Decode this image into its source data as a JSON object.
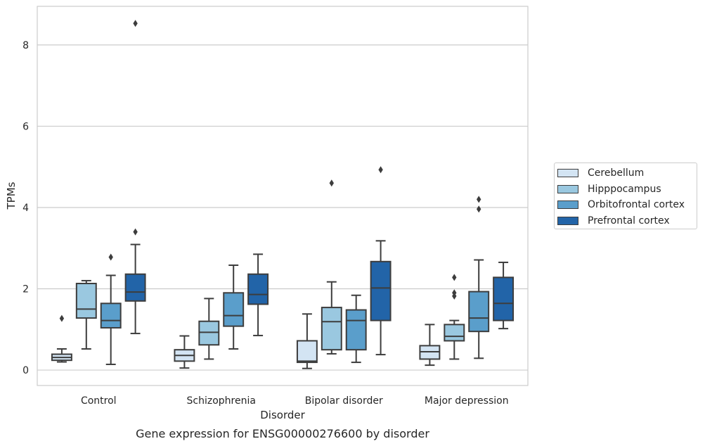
{
  "chart_data": {
    "type": "box",
    "title": "",
    "caption": "Gene expression for ENSG00000276600 by disorder",
    "xlabel": "Disorder",
    "ylabel": "TPMs",
    "ylim": [
      -0.38,
      8.95
    ],
    "yticks": [
      0,
      2,
      4,
      6,
      8
    ],
    "grid": "horizontal",
    "legend_position": "right",
    "categories": [
      "Control",
      "Schizophrenia",
      "Bipolar disorder",
      "Major depression"
    ],
    "series": [
      {
        "name": "Cerebellum",
        "color": "#d3e4f3",
        "boxes": [
          {
            "whisker_low": 0.2,
            "q1": 0.24,
            "median": 0.31,
            "q3": 0.39,
            "whisker_high": 0.52,
            "outliers": [
              1.27
            ]
          },
          {
            "whisker_low": 0.05,
            "q1": 0.22,
            "median": 0.36,
            "q3": 0.5,
            "whisker_high": 0.84,
            "outliers": []
          },
          {
            "whisker_low": 0.04,
            "q1": 0.19,
            "median": 0.22,
            "q3": 0.72,
            "whisker_high": 1.38,
            "outliers": []
          },
          {
            "whisker_low": 0.12,
            "q1": 0.27,
            "median": 0.45,
            "q3": 0.6,
            "whisker_high": 1.12,
            "outliers": []
          }
        ]
      },
      {
        "name": "Hipppocampus",
        "color": "#9ac8e0",
        "boxes": [
          {
            "whisker_low": 0.52,
            "q1": 1.28,
            "median": 1.5,
            "q3": 2.13,
            "whisker_high": 2.2,
            "outliers": []
          },
          {
            "whisker_low": 0.27,
            "q1": 0.62,
            "median": 0.93,
            "q3": 1.2,
            "whisker_high": 1.76,
            "outliers": []
          },
          {
            "whisker_low": 0.4,
            "q1": 0.5,
            "median": 1.19,
            "q3": 1.54,
            "whisker_high": 2.17,
            "outliers": [
              4.6
            ]
          },
          {
            "whisker_low": 0.27,
            "q1": 0.72,
            "median": 0.83,
            "q3": 1.12,
            "whisker_high": 1.22,
            "outliers": [
              1.82,
              1.9,
              2.28
            ]
          }
        ]
      },
      {
        "name": "Orbitofrontal cortex",
        "color": "#5a9ecb",
        "boxes": [
          {
            "whisker_low": 0.14,
            "q1": 1.04,
            "median": 1.22,
            "q3": 1.64,
            "whisker_high": 2.33,
            "outliers": [
              2.78
            ]
          },
          {
            "whisker_low": 0.52,
            "q1": 1.08,
            "median": 1.34,
            "q3": 1.9,
            "whisker_high": 2.58,
            "outliers": []
          },
          {
            "whisker_low": 0.19,
            "q1": 0.5,
            "median": 1.22,
            "q3": 1.48,
            "whisker_high": 1.84,
            "outliers": []
          },
          {
            "whisker_low": 0.29,
            "q1": 0.95,
            "median": 1.28,
            "q3": 1.93,
            "whisker_high": 2.71,
            "outliers": [
              3.96,
              4.2
            ]
          }
        ]
      },
      {
        "name": "Prefrontal cortex",
        "color": "#2264a8",
        "boxes": [
          {
            "whisker_low": 0.9,
            "q1": 1.7,
            "median": 1.92,
            "q3": 2.36,
            "whisker_high": 3.09,
            "outliers": [
              3.4,
              8.53
            ]
          },
          {
            "whisker_low": 0.85,
            "q1": 1.62,
            "median": 1.86,
            "q3": 2.36,
            "whisker_high": 2.85,
            "outliers": []
          },
          {
            "whisker_low": 0.38,
            "q1": 1.22,
            "median": 2.02,
            "q3": 2.67,
            "whisker_high": 3.18,
            "outliers": [
              4.93
            ]
          },
          {
            "whisker_low": 1.02,
            "q1": 1.22,
            "median": 1.64,
            "q3": 2.28,
            "whisker_high": 2.65,
            "outliers": []
          }
        ]
      }
    ]
  }
}
